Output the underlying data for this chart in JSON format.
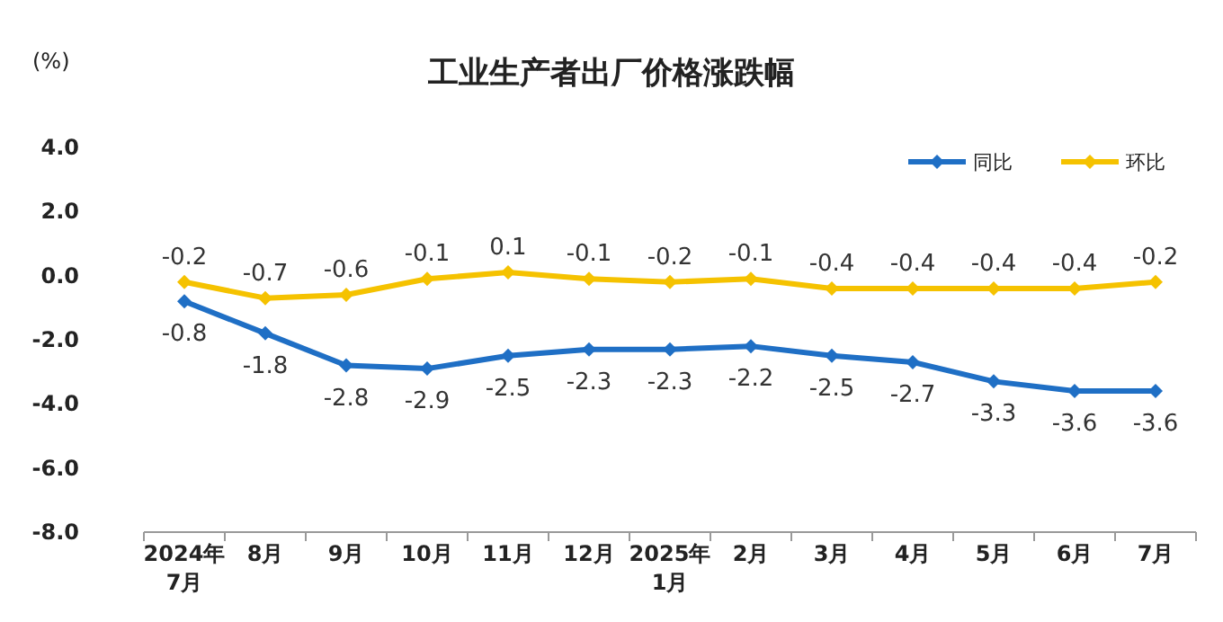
{
  "chart_data": {
    "type": "line",
    "title": "工业生产者出厂价格涨跌幅",
    "ylabel": "(%)",
    "categories": [
      "2024年\n7月",
      "8月",
      "9月",
      "10月",
      "11月",
      "12月",
      "2025年\n1月",
      "2月",
      "3月",
      "4月",
      "5月",
      "6月",
      "7月"
    ],
    "series": [
      {
        "name": "同比",
        "color": "#1f6fc5",
        "values": [
          -0.8,
          -1.8,
          -2.8,
          -2.9,
          -2.5,
          -2.3,
          -2.3,
          -2.2,
          -2.5,
          -2.7,
          -3.3,
          -3.6,
          -3.6
        ]
      },
      {
        "name": "环比",
        "color": "#f5c200",
        "values": [
          -0.2,
          -0.7,
          -0.6,
          -0.1,
          0.1,
          -0.1,
          -0.2,
          -0.1,
          -0.4,
          -0.4,
          -0.4,
          -0.4,
          -0.2
        ]
      }
    ],
    "ylim": [
      -8,
      4
    ],
    "yticks": [
      {
        "value": -8,
        "label": "-8.0"
      },
      {
        "value": -6,
        "label": "-6.0"
      },
      {
        "value": -4,
        "label": "-4.0"
      },
      {
        "value": -2,
        "label": "-2.0"
      },
      {
        "value": 0,
        "label": "0.0"
      },
      {
        "value": 2,
        "label": "2.0"
      },
      {
        "value": 4,
        "label": "4.0"
      }
    ],
    "legend": "top right",
    "marker": "diamond",
    "data_labels": true,
    "grid": false
  }
}
